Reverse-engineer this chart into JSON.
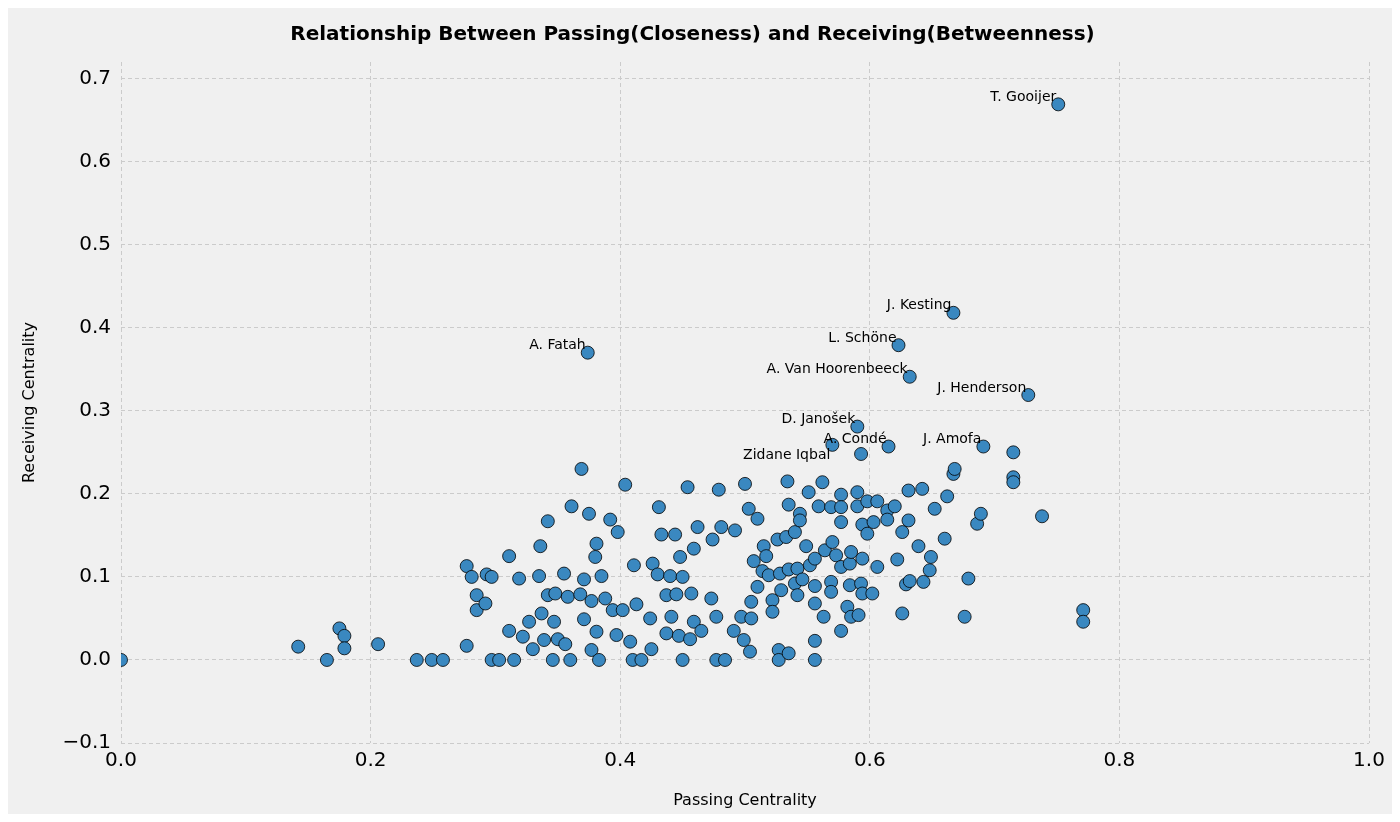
{
  "chart_data": {
    "type": "scatter",
    "title": "Relationship Between Passing(Closeness) and Receiving(Betweenness)",
    "xlabel": "Passing Centrality",
    "ylabel": "Receiving Centrality",
    "x": [
      0,
      0.142,
      0.165,
      0.175,
      0.179,
      0.179,
      0.206,
      0.237,
      0.249,
      0.258,
      0.277,
      0.277,
      0.281,
      0.285,
      0.285,
      0.292,
      0.293,
      0.297,
      0.297,
      0.303,
      0.311,
      0.311,
      0.315,
      0.319,
      0.322,
      0.327,
      0.33,
      0.335,
      0.336,
      0.337,
      0.339,
      0.342,
      0.342,
      0.346,
      0.347,
      0.348,
      0.35,
      0.355,
      0.356,
      0.358,
      0.36,
      0.361,
      0.368,
      0.369,
      0.374,
      0.371,
      0.371,
      0.375,
      0.377,
      0.377,
      0.38,
      0.381,
      0.381,
      0.383,
      0.385,
      0.388,
      0.392,
      0.394,
      0.397,
      0.398,
      0.402,
      0.404,
      0.408,
      0.41,
      0.411,
      0.413,
      0.417,
      0.424,
      0.425,
      0.426,
      0.43,
      0.431,
      0.433,
      0.437,
      0.437,
      0.44,
      0.441,
      0.444,
      0.445,
      0.447,
      0.448,
      0.45,
      0.45,
      0.454,
      0.456,
      0.457,
      0.459,
      0.459,
      0.462,
      0.465,
      0.473,
      0.474,
      0.477,
      0.477,
      0.479,
      0.481,
      0.484,
      0.491,
      0.492,
      0.497,
      0.499,
      0.5,
      0.503,
      0.504,
      0.505,
      0.505,
      0.507,
      0.51,
      0.51,
      0.514,
      0.515,
      0.517,
      0.519,
      0.522,
      0.522,
      0.526,
      0.527,
      0.527,
      0.528,
      0.529,
      0.533,
      0.534,
      0.535,
      0.535,
      0.535,
      0.54,
      0.54,
      0.542,
      0.542,
      0.544,
      0.544,
      0.546,
      0.549,
      0.551,
      0.552,
      0.556,
      0.556,
      0.556,
      0.556,
      0.556,
      0.559,
      0.562,
      0.563,
      0.564,
      0.569,
      0.569,
      0.569,
      0.57,
      0.57,
      0.573,
      0.577,
      0.577,
      0.577,
      0.577,
      0.577,
      0.582,
      0.584,
      0.584,
      0.585,
      0.585,
      0.59,
      0.59,
      0.59,
      0.591,
      0.593,
      0.593,
      0.594,
      0.594,
      0.594,
      0.598,
      0.598,
      0.602,
      0.603,
      0.606,
      0.606,
      0.614,
      0.614,
      0.615,
      0.62,
      0.622,
      0.623,
      0.626,
      0.626,
      0.629,
      0.631,
      0.631,
      0.632,
      0.632,
      0.639,
      0.642,
      0.643,
      0.648,
      0.649,
      0.652,
      0.66,
      0.662,
      0.667,
      0.667,
      0.668,
      0.676,
      0.679,
      0.686,
      0.689,
      0.691,
      0.715,
      0.715,
      0.715,
      0.727,
      0.738,
      0.751,
      0.771,
      0.771
    ],
    "values": [
      0,
      0.016,
      0,
      0.038,
      0.029,
      0.014,
      0.019,
      0,
      0,
      0,
      0.017,
      0.113,
      0.1,
      0.078,
      0.06,
      0.068,
      0.103,
      0.1,
      0,
      0,
      0.035,
      0.125,
      0,
      0.098,
      0.028,
      0.046,
      0.013,
      0.101,
      0.137,
      0.056,
      0.024,
      0.167,
      0.078,
      0,
      0.046,
      0.08,
      0.025,
      0.104,
      0.019,
      0.076,
      0,
      0.185,
      0.079,
      0.23,
      0.37,
      0.097,
      0.049,
      0.176,
      0.012,
      0.071,
      0.124,
      0.034,
      0.14,
      0,
      0.101,
      0.074,
      0.169,
      0.06,
      0.03,
      0.154,
      0.06,
      0.211,
      0.022,
      0,
      0.114,
      0.067,
      0,
      0.05,
      0.013,
      0.116,
      0.103,
      0.184,
      0.151,
      0.078,
      0.032,
      0.101,
      0.052,
      0.151,
      0.079,
      0.029,
      0.124,
      0.1,
      0,
      0.208,
      0.025,
      0.08,
      0.134,
      0.046,
      0.16,
      0.035,
      0.074,
      0.145,
      0,
      0.052,
      0.205,
      0.16,
      0,
      0.035,
      0.156,
      0.052,
      0.024,
      0.212,
      0.182,
      0.01,
      0.07,
      0.05,
      0.119,
      0.17,
      0.088,
      0.107,
      0.137,
      0.125,
      0.102,
      0.072,
      0.058,
      0.145,
      0.012,
      0,
      0.104,
      0.084,
      0.148,
      0.215,
      0.187,
      0.109,
      0.008,
      0.092,
      0.154,
      0.11,
      0.078,
      0.176,
      0.168,
      0.097,
      0.137,
      0.202,
      0.114,
      0.122,
      0.089,
      0.068,
      0.023,
      0,
      0.185,
      0.214,
      0.052,
      0.132,
      0.184,
      0.094,
      0.082,
      0.259,
      0.142,
      0.126,
      0.199,
      0.184,
      0.166,
      0.035,
      0.112,
      0.064,
      0.116,
      0.09,
      0.052,
      0.13,
      0.202,
      0.185,
      0.281,
      0.054,
      0.248,
      0.092,
      0.163,
      0.122,
      0.08,
      0.191,
      0.152,
      0.08,
      0.166,
      0.112,
      0.191,
      0.18,
      0.169,
      0.257,
      0.185,
      0.121,
      0.379,
      0.154,
      0.056,
      0.091,
      0.168,
      0.204,
      0.341,
      0.095,
      0.137,
      0.206,
      0.094,
      0.108,
      0.124,
      0.182,
      0.146,
      0.197,
      0.418,
      0.224,
      0.23,
      0.052,
      0.098,
      0.164,
      0.176,
      0.257,
      0.25,
      0.22,
      0.214,
      0.319,
      0.173,
      0.669,
      0.06,
      0.046
    ],
    "color": "#3a88c0",
    "marker": "circle",
    "xlim": [
      0,
      1
    ],
    "ylim": [
      -0.1,
      0.72
    ],
    "xticks": [
      {
        "value": 0,
        "label": "0.0"
      },
      0.2,
      0.4,
      0.6,
      0.8,
      {
        "value": 1,
        "label": "1.0"
      }
    ],
    "yticks": [
      {
        "value": -0.1,
        "label": "−0.1"
      },
      {
        "value": 0,
        "label": "0.0"
      },
      0.1,
      0.2,
      0.3,
      0.4,
      0.5,
      0.6,
      0.7
    ],
    "grid": true,
    "annotations": [
      {
        "text": "T. Gooijer",
        "x": 0.751,
        "y": 0.669
      },
      {
        "text": "J. Kesting",
        "x": 0.667,
        "y": 0.418
      },
      {
        "text": "L. Schöne",
        "x": 0.623,
        "y": 0.379
      },
      {
        "text": "A. Fatah",
        "x": 0.374,
        "y": 0.37
      },
      {
        "text": "A. Van Hoorenbeeck",
        "x": 0.632,
        "y": 0.341
      },
      {
        "text": "J. Henderson",
        "x": 0.727,
        "y": 0.319
      },
      {
        "text": "D. Janošek",
        "x": 0.59,
        "y": 0.281
      },
      {
        "text": "A. Condé",
        "x": 0.615,
        "y": 0.257
      },
      {
        "text": "J. Amofa",
        "x": 0.691,
        "y": 0.257
      },
      {
        "text": "Zidane Iqbal",
        "x": 0.57,
        "y": 0.259
      }
    ]
  }
}
